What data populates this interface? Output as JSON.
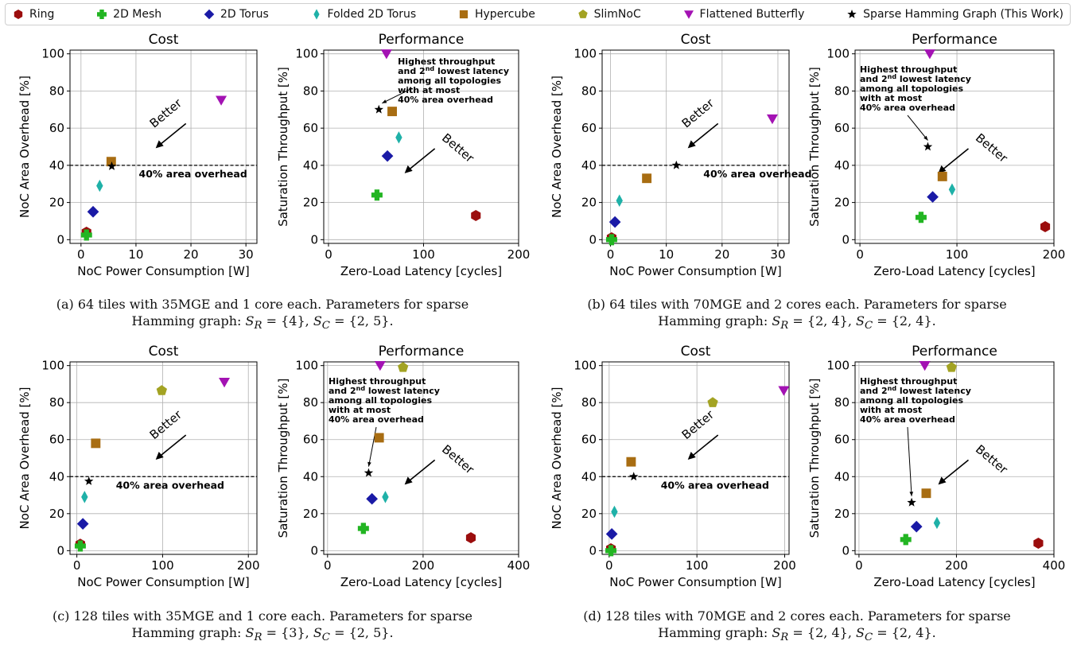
{
  "colors": {
    "ring": "#9b0d0d",
    "mesh2d": "#22b522",
    "torus2d": "#1a1aa6",
    "folded": "#1fb1a8",
    "hypercube": "#a86d12",
    "slimnoc": "#a3a323",
    "flattened": "#a312b3",
    "sparse": "#000000"
  },
  "legend": [
    {
      "key": "ring",
      "label": "Ring",
      "marker": "hexagon"
    },
    {
      "key": "mesh2d",
      "label": "2D Mesh",
      "marker": "plus"
    },
    {
      "key": "torus2d",
      "label": "2D Torus",
      "marker": "diamond"
    },
    {
      "key": "folded",
      "label": "Folded 2D Torus",
      "marker": "thin-diamond"
    },
    {
      "key": "hypercube",
      "label": "Hypercube",
      "marker": "square"
    },
    {
      "key": "slimnoc",
      "label": "SlimNoC",
      "marker": "pentagon"
    },
    {
      "key": "flattened",
      "label": "Flattened Butterfly",
      "marker": "triangle-down"
    },
    {
      "key": "sparse",
      "label": "Sparse Hamming Graph (This Work)",
      "marker": "star"
    }
  ],
  "captions": [
    {
      "line1": "(a) 64 tiles with 35MGE and 1 core each. Parameters for sparse",
      "line2_pre": "Hamming graph: ",
      "sr_label": "S",
      "sr_sub": "R",
      "sr_val": " = {4}, ",
      "sc_label": "S",
      "sc_sub": "C",
      "sc_val": " = {2, 5}."
    },
    {
      "line1": "(b) 64 tiles with 70MGE and 2 cores each. Parameters for sparse",
      "line2_pre": "Hamming graph: ",
      "sr_label": "S",
      "sr_sub": "R",
      "sr_val": " = {2, 4}, ",
      "sc_label": "S",
      "sc_sub": "C",
      "sc_val": " = {2, 4}."
    },
    {
      "line1": "(c) 128 tiles with 35MGE and 1 core each. Parameters for sparse",
      "line2_pre": "Hamming graph: ",
      "sr_label": "S",
      "sr_sub": "R",
      "sr_val": " = {3}, ",
      "sc_label": "S",
      "sc_sub": "C",
      "sc_val": " = {2, 5}."
    },
    {
      "line1": "(d) 128 tiles with 70MGE and 2 cores each. Parameters for sparse",
      "line2_pre": "Hamming graph: ",
      "sr_label": "S",
      "sr_sub": "R",
      "sr_val": " = {2, 4}, ",
      "sc_label": "S",
      "sc_sub": "C",
      "sc_val": " = {2, 4}."
    }
  ],
  "chart_data": [
    {
      "type": "scatter",
      "panel": "a-cost",
      "title": "Cost",
      "xlabel": "NoC Power Consumption [W]",
      "ylabel": "NoC Area Overhead [%]",
      "xlim": [
        -2,
        32
      ],
      "ylim": [
        -2,
        102
      ],
      "xticks": [
        0,
        10,
        20,
        30
      ],
      "yticks": [
        0,
        20,
        40,
        60,
        80,
        100
      ],
      "grid": true,
      "hline": {
        "y": 40,
        "label": "40% area overhead"
      },
      "arrow_label": "Better",
      "points": [
        {
          "series": "ring",
          "x": 1.0,
          "y": 4
        },
        {
          "series": "mesh2d",
          "x": 1.0,
          "y": 2.5
        },
        {
          "series": "torus2d",
          "x": 2.2,
          "y": 15
        },
        {
          "series": "folded",
          "x": 3.4,
          "y": 29
        },
        {
          "series": "hypercube",
          "x": 5.5,
          "y": 42
        },
        {
          "series": "flattened",
          "x": 25.5,
          "y": 75
        },
        {
          "series": "sparse",
          "x": 5.6,
          "y": 39.5
        }
      ]
    },
    {
      "type": "scatter",
      "panel": "a-perf",
      "title": "Performance",
      "xlabel": "Zero-Load Latency [cycles]",
      "ylabel": "Saturation Throughput [%]",
      "xlim": [
        -5,
        200
      ],
      "ylim": [
        -2,
        102
      ],
      "xticks": [
        0,
        100,
        200
      ],
      "yticks": [
        0,
        20,
        40,
        60,
        80,
        100
      ],
      "grid": true,
      "arrow_label": "Better",
      "annotation": [
        "Highest throughput",
        "and 2",
        "nd",
        " lowest latency",
        "among all topologies",
        "with at most",
        "40% area overhead"
      ],
      "points": [
        {
          "series": "ring",
          "x": 155,
          "y": 13
        },
        {
          "series": "mesh2d",
          "x": 51,
          "y": 24
        },
        {
          "series": "torus2d",
          "x": 62,
          "y": 45
        },
        {
          "series": "folded",
          "x": 74,
          "y": 55
        },
        {
          "series": "hypercube",
          "x": 67,
          "y": 69
        },
        {
          "series": "flattened",
          "x": 61,
          "y": 100
        },
        {
          "series": "sparse",
          "x": 53,
          "y": 70
        }
      ]
    },
    {
      "type": "scatter",
      "panel": "b-cost",
      "title": "Cost",
      "xlabel": "NoC Power Consumption [W]",
      "ylabel": "NoC Area Overhead [%]",
      "xlim": [
        -1.5,
        32
      ],
      "ylim": [
        -2,
        102
      ],
      "xticks": [
        0,
        10,
        20,
        30
      ],
      "yticks": [
        0,
        20,
        40,
        60,
        80,
        100
      ],
      "grid": true,
      "hline": {
        "y": 40,
        "label": "40% area overhead"
      },
      "arrow_label": "Better",
      "points": [
        {
          "series": "ring",
          "x": 0.2,
          "y": 1
        },
        {
          "series": "mesh2d",
          "x": 0.2,
          "y": 0
        },
        {
          "series": "torus2d",
          "x": 0.8,
          "y": 9.5
        },
        {
          "series": "folded",
          "x": 1.6,
          "y": 21
        },
        {
          "series": "hypercube",
          "x": 6.5,
          "y": 33
        },
        {
          "series": "flattened",
          "x": 29,
          "y": 65
        },
        {
          "series": "sparse",
          "x": 11.8,
          "y": 40
        }
      ]
    },
    {
      "type": "scatter",
      "panel": "b-perf",
      "title": "Performance",
      "xlabel": "Zero-Load Latency [cycles]",
      "ylabel": "Saturation Throughput [%]",
      "xlim": [
        -5,
        200
      ],
      "ylim": [
        -2,
        102
      ],
      "xticks": [
        0,
        100,
        200
      ],
      "yticks": [
        0,
        20,
        40,
        60,
        80,
        100
      ],
      "grid": true,
      "arrow_label": "Better",
      "annotation": [
        "Highest throughput",
        "and 2",
        "nd",
        " lowest latency",
        "among all topologies",
        "with at most",
        "40% area overhead"
      ],
      "points": [
        {
          "series": "ring",
          "x": 191,
          "y": 7
        },
        {
          "series": "mesh2d",
          "x": 63,
          "y": 12
        },
        {
          "series": "torus2d",
          "x": 75,
          "y": 23
        },
        {
          "series": "folded",
          "x": 95,
          "y": 27
        },
        {
          "series": "hypercube",
          "x": 85,
          "y": 34
        },
        {
          "series": "flattened",
          "x": 72,
          "y": 100
        },
        {
          "series": "sparse",
          "x": 70,
          "y": 50
        }
      ]
    },
    {
      "type": "scatter",
      "panel": "c-cost",
      "title": "Cost",
      "xlabel": "NoC Power Consumption [W]",
      "ylabel": "NoC Area Overhead [%]",
      "xlim": [
        -8,
        210
      ],
      "ylim": [
        -2,
        102
      ],
      "xticks": [
        0,
        100,
        200
      ],
      "yticks": [
        0,
        20,
        40,
        60,
        80,
        100
      ],
      "grid": true,
      "hline": {
        "y": 40,
        "label": "40% area overhead"
      },
      "arrow_label": "Better",
      "points": [
        {
          "series": "ring",
          "x": 4,
          "y": 3.5
        },
        {
          "series": "mesh2d",
          "x": 4,
          "y": 2.5
        },
        {
          "series": "torus2d",
          "x": 7,
          "y": 14.5
        },
        {
          "series": "folded",
          "x": 9,
          "y": 29
        },
        {
          "series": "hypercube",
          "x": 22,
          "y": 58
        },
        {
          "series": "slimnoc",
          "x": 99,
          "y": 86.5
        },
        {
          "series": "flattened",
          "x": 172,
          "y": 91
        },
        {
          "series": "sparse",
          "x": 14,
          "y": 37.5
        }
      ]
    },
    {
      "type": "scatter",
      "panel": "c-perf",
      "title": "Performance",
      "xlabel": "Zero-Load Latency [cycles]",
      "ylabel": "Saturation Throughput [%]",
      "xlim": [
        -8,
        400
      ],
      "ylim": [
        -2,
        102
      ],
      "xticks": [
        0,
        200,
        400
      ],
      "yticks": [
        0,
        20,
        40,
        60,
        80,
        100
      ],
      "grid": true,
      "arrow_label": "Better",
      "annotation": [
        "Highest throughput",
        "and 2",
        "nd",
        " lowest latency",
        "among all topologies",
        "with at most",
        "40% area overhead"
      ],
      "points": [
        {
          "series": "ring",
          "x": 300,
          "y": 7
        },
        {
          "series": "mesh2d",
          "x": 75,
          "y": 12
        },
        {
          "series": "torus2d",
          "x": 93,
          "y": 28
        },
        {
          "series": "folded",
          "x": 121,
          "y": 29
        },
        {
          "series": "hypercube",
          "x": 108,
          "y": 61
        },
        {
          "series": "slimnoc",
          "x": 158,
          "y": 99
        },
        {
          "series": "flattened",
          "x": 110,
          "y": 100
        },
        {
          "series": "sparse",
          "x": 86,
          "y": 42
        }
      ]
    },
    {
      "type": "scatter",
      "panel": "d-cost",
      "title": "Cost",
      "xlabel": "NoC Power Consumption [W]",
      "ylabel": "NoC Area Overhead [%]",
      "xlim": [
        -8,
        205
      ],
      "ylim": [
        -2,
        102
      ],
      "xticks": [
        0,
        100,
        200
      ],
      "yticks": [
        0,
        20,
        40,
        60,
        80,
        100
      ],
      "grid": true,
      "hline": {
        "y": 40,
        "label": "40% area overhead"
      },
      "arrow_label": "Better",
      "points": [
        {
          "series": "ring",
          "x": 2,
          "y": 1
        },
        {
          "series": "mesh2d",
          "x": 2,
          "y": 0
        },
        {
          "series": "torus2d",
          "x": 3,
          "y": 9
        },
        {
          "series": "folded",
          "x": 6,
          "y": 21
        },
        {
          "series": "hypercube",
          "x": 25,
          "y": 48
        },
        {
          "series": "slimnoc",
          "x": 118,
          "y": 80
        },
        {
          "series": "flattened",
          "x": 199,
          "y": 86.5
        },
        {
          "series": "sparse",
          "x": 28,
          "y": 40
        }
      ]
    },
    {
      "type": "scatter",
      "panel": "d-perf",
      "title": "Performance",
      "xlabel": "Zero-Load Latency [cycles]",
      "ylabel": "Saturation Throughput [%]",
      "xlim": [
        -8,
        400
      ],
      "ylim": [
        -2,
        102
      ],
      "xticks": [
        0,
        200,
        400
      ],
      "yticks": [
        0,
        20,
        40,
        60,
        80,
        100
      ],
      "grid": true,
      "arrow_label": "Better",
      "annotation": [
        "Highest throughput",
        "and 2",
        "nd",
        " lowest latency",
        "among all topologies",
        "with at most",
        "40% area overhead"
      ],
      "points": [
        {
          "series": "ring",
          "x": 368,
          "y": 4
        },
        {
          "series": "mesh2d",
          "x": 96,
          "y": 6
        },
        {
          "series": "torus2d",
          "x": 118,
          "y": 13
        },
        {
          "series": "folded",
          "x": 160,
          "y": 15
        },
        {
          "series": "hypercube",
          "x": 138,
          "y": 31
        },
        {
          "series": "slimnoc",
          "x": 190,
          "y": 99
        },
        {
          "series": "flattened",
          "x": 135,
          "y": 100
        },
        {
          "series": "sparse",
          "x": 108,
          "y": 26
        }
      ]
    }
  ]
}
